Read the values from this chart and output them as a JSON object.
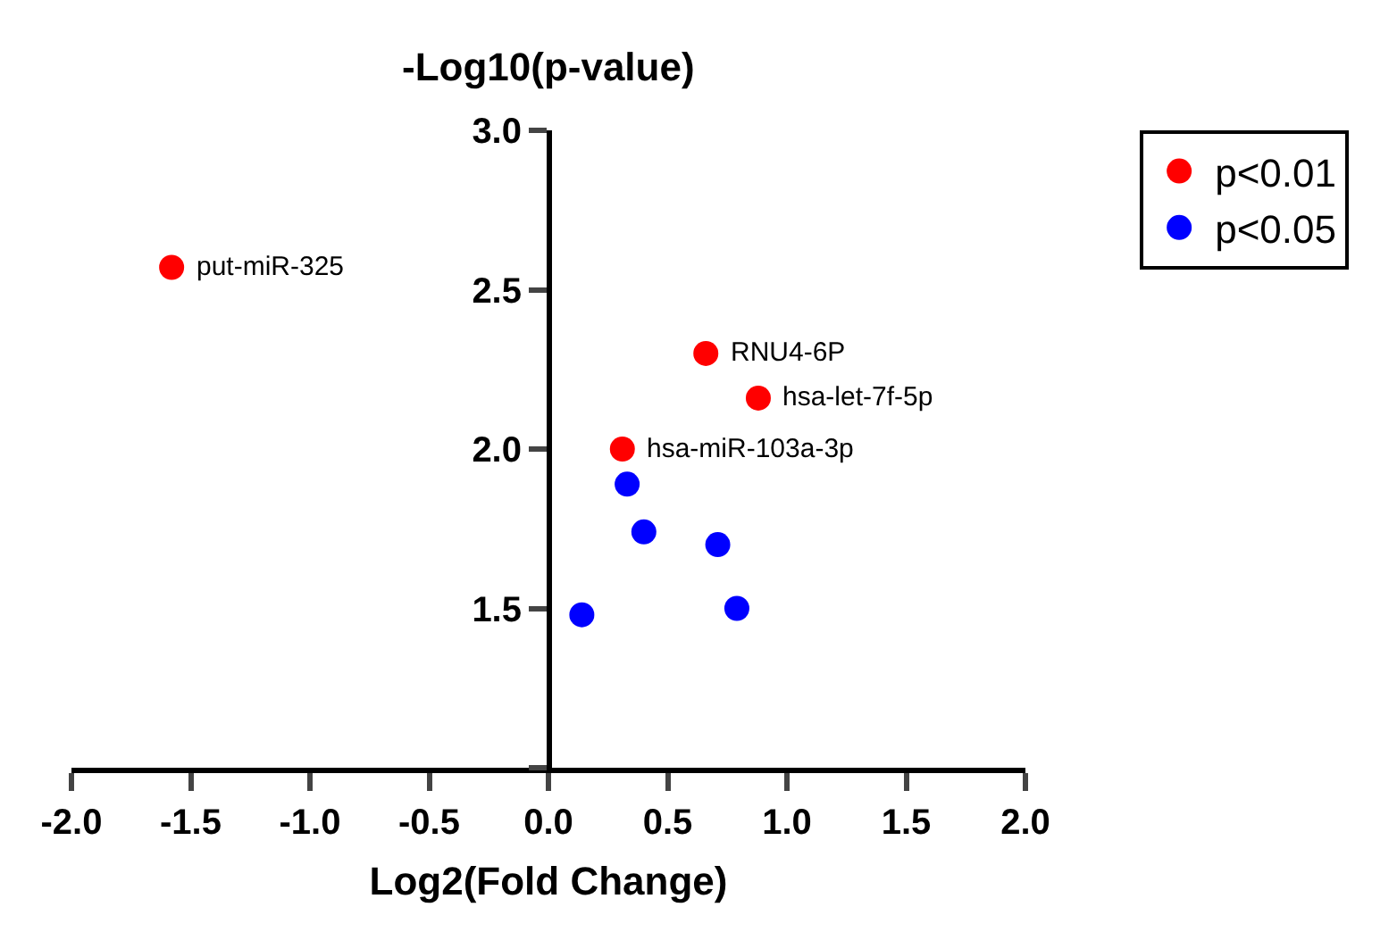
{
  "chart_data": {
    "type": "scatter",
    "xlabel": "Log2(Fold Change)",
    "ylabel": "-Log10(p-value)",
    "xlim": [
      -2.0,
      2.0
    ],
    "xticks": [
      {
        "value": -2.0,
        "label": "-2.0"
      },
      {
        "value": -1.5,
        "label": "-1.5"
      },
      {
        "value": -1.0,
        "label": "-1.0"
      },
      {
        "value": -0.5,
        "label": "-0.5"
      },
      {
        "value": 0.0,
        "label": "0.0"
      },
      {
        "value": 0.5,
        "label": "0.5"
      },
      {
        "value": 1.0,
        "label": "1.0"
      },
      {
        "value": 1.5,
        "label": "1.5"
      },
      {
        "value": 2.0,
        "label": "2.0"
      }
    ],
    "ylim": [
      1.0,
      3.0
    ],
    "yticks": [
      {
        "value": 1.0,
        "label": null
      },
      {
        "value": 1.5,
        "label": "1.5"
      },
      {
        "value": 2.0,
        "label": "2.0"
      },
      {
        "value": 2.5,
        "label": "2.5"
      },
      {
        "value": 3.0,
        "label": "3.0"
      }
    ],
    "series": [
      {
        "name": "p<0.01",
        "color": "#ff0000",
        "x": [
          -1.58,
          0.66,
          0.88,
          0.31
        ],
        "values": [
          2.57,
          2.3,
          2.16,
          2.0
        ]
      },
      {
        "name": "p<0.05",
        "color": "#0000ff",
        "x": [
          0.33,
          0.4,
          0.71,
          0.14,
          0.79
        ],
        "values": [
          1.89,
          1.74,
          1.7,
          1.48,
          1.5
        ]
      }
    ],
    "annotations": [
      {
        "text": "put-miR-325",
        "x": -1.58,
        "y": 2.57
      },
      {
        "text": "RNU4-6P",
        "x": 0.66,
        "y": 2.3
      },
      {
        "text": "hsa-let-7f-5p",
        "x": 0.88,
        "y": 2.16
      },
      {
        "text": "hsa-miR-103a-3p",
        "x": 0.31,
        "y": 2.0
      }
    ],
    "marker": "circle",
    "legend": "top right"
  }
}
